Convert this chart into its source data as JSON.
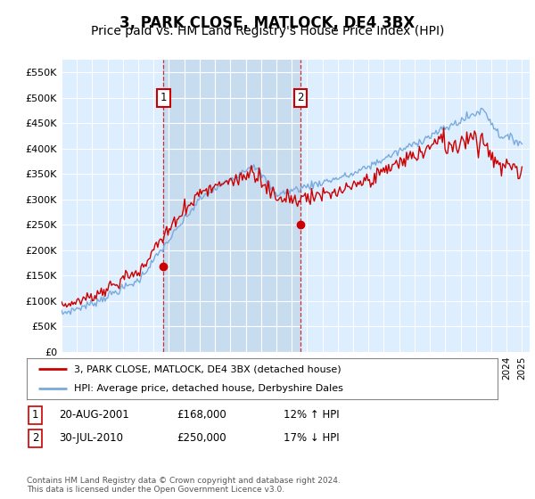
{
  "title": "3, PARK CLOSE, MATLOCK, DE4 3BX",
  "subtitle": "Price paid vs. HM Land Registry's House Price Index (HPI)",
  "title_fontsize": 12,
  "subtitle_fontsize": 10,
  "background_color": "#ffffff",
  "plot_bg_color": "#ddeeff",
  "plot_bg_highlight": "#c8dcf0",
  "grid_color": "#ffffff",
  "hpi_color": "#7aaadd",
  "price_color": "#cc0000",
  "ylim": [
    0,
    575000
  ],
  "yticks": [
    0,
    50000,
    100000,
    150000,
    200000,
    250000,
    300000,
    350000,
    400000,
    450000,
    500000,
    550000
  ],
  "ytick_labels": [
    "£0",
    "£50K",
    "£100K",
    "£150K",
    "£200K",
    "£250K",
    "£300K",
    "£350K",
    "£400K",
    "£450K",
    "£500K",
    "£550K"
  ],
  "x_start_year": 1995,
  "x_end_year": 2025,
  "sale1_date": 2001.64,
  "sale1_price": 168000,
  "sale1_label": "1",
  "sale2_date": 2010.58,
  "sale2_price": 250000,
  "sale2_label": "2",
  "legend_line1": "3, PARK CLOSE, MATLOCK, DE4 3BX (detached house)",
  "legend_line2": "HPI: Average price, detached house, Derbyshire Dales",
  "table_row1": [
    "1",
    "20-AUG-2001",
    "£168,000",
    "12% ↑ HPI"
  ],
  "table_row2": [
    "2",
    "30-JUL-2010",
    "£250,000",
    "17% ↓ HPI"
  ],
  "footnote": "Contains HM Land Registry data © Crown copyright and database right 2024.\nThis data is licensed under the Open Government Licence v3.0."
}
